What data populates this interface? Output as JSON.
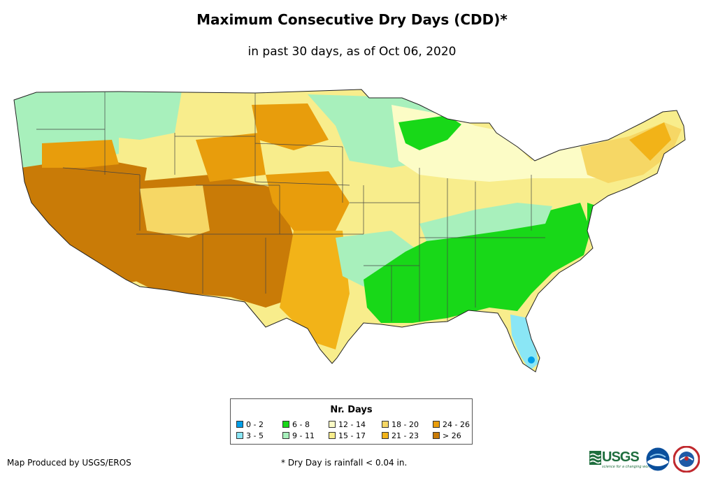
{
  "header": {
    "title": "Maximum Consecutive Dry Days (CDD)*",
    "subtitle": "in past 30 days, as of Oct 06, 2020"
  },
  "legend": {
    "title": "Nr. Days",
    "items": [
      {
        "label": "0 - 2",
        "color": "#009ee8"
      },
      {
        "label": "3 - 5",
        "color": "#8ae6f5"
      },
      {
        "label": "6 - 8",
        "color": "#18d818"
      },
      {
        "label": "9 - 11",
        "color": "#a8f0bc"
      },
      {
        "label": "12 - 14",
        "color": "#fcfcc6"
      },
      {
        "label": "15 - 17",
        "color": "#f8ed8c"
      },
      {
        "label": "18 - 20",
        "color": "#f6d765"
      },
      {
        "label": "21 - 23",
        "color": "#f2b318"
      },
      {
        "label": "24 - 26",
        "color": "#e89d0c"
      },
      {
        "label": "> 26",
        "color": "#c97b07"
      }
    ]
  },
  "footer": {
    "credit": "Map Produced by USGS/EROS",
    "footnote": "* Dry Day is rainfall < 0.04 in."
  },
  "logos": {
    "usgs_text": "USGS",
    "usgs_tagline": "science for a changing world"
  }
}
